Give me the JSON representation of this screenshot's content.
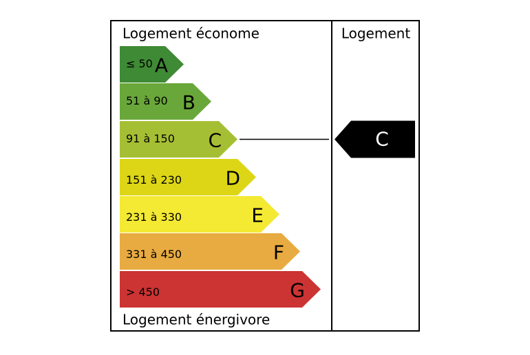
{
  "header": {
    "left_top": "Logement économe",
    "left_bottom": "Logement énergivore",
    "right": "Logement"
  },
  "classes": [
    {
      "range": "≤ 50",
      "letter": "A",
      "color": "#3f8a35"
    },
    {
      "range": "51 à 90",
      "letter": "B",
      "color": "#6aa73a"
    },
    {
      "range": "91 à 150",
      "letter": "C",
      "color": "#a5bf34"
    },
    {
      "range": "151 à 230",
      "letter": "D",
      "color": "#ddd616"
    },
    {
      "range": "231 à 330",
      "letter": "E",
      "color": "#f4e933"
    },
    {
      "range": "331 à 450",
      "letter": "F",
      "color": "#e8ab41"
    },
    {
      "range": "> 450",
      "letter": "G",
      "color": "#cc3333"
    }
  ],
  "current": "C"
}
